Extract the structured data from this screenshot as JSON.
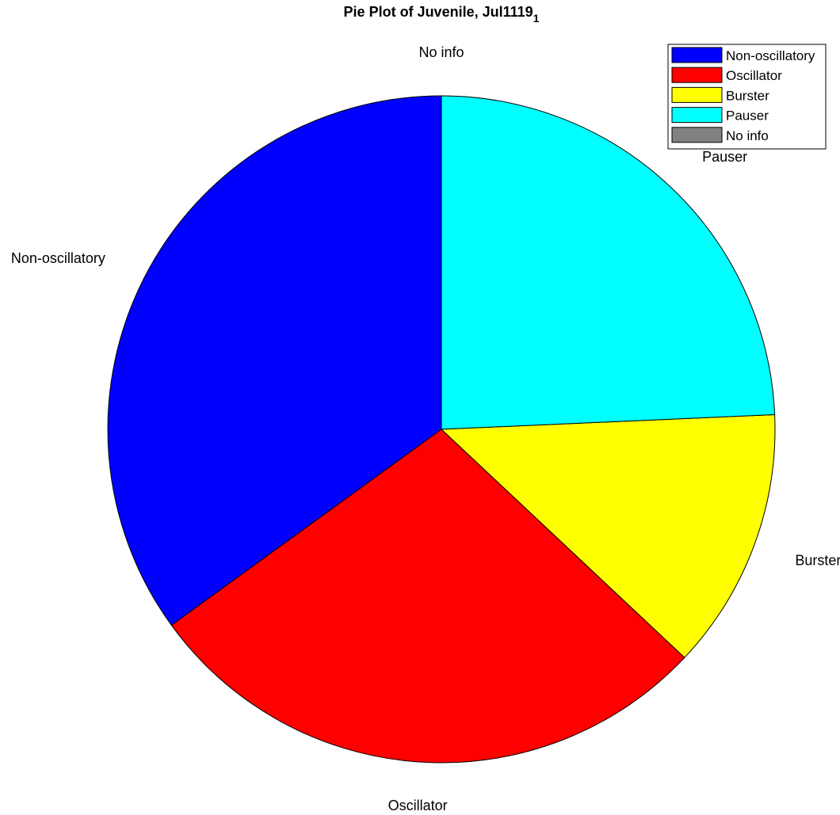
{
  "chart_data": {
    "type": "pie",
    "title": "Pie Plot of Juvenile, Jul1119",
    "title_subscript": "1",
    "categories": [
      "Non-oscillatory",
      "Oscillator",
      "Burster",
      "Pauser",
      "No info"
    ],
    "values": [
      35.0,
      28.0,
      12.7,
      24.3,
      0
    ],
    "colors": [
      "#0000ff",
      "#ff0000",
      "#ffff00",
      "#00ffff",
      "#808080"
    ],
    "start": "12 o'clock",
    "direction": "counterclockwise",
    "legend": {
      "position": "top-right"
    }
  }
}
